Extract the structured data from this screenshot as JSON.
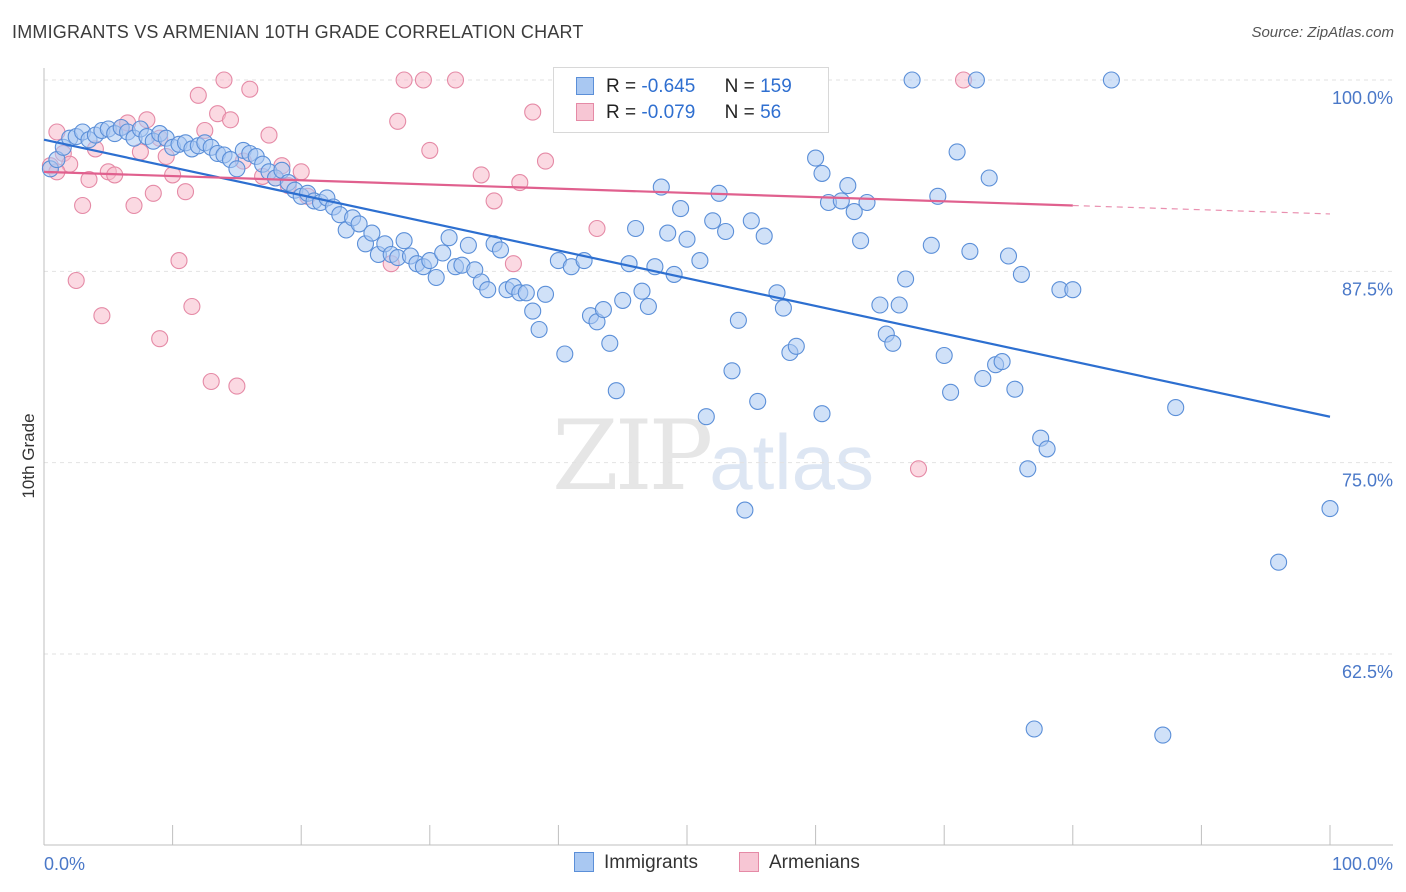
{
  "header": {
    "title": "IMMIGRANTS VS ARMENIAN 10TH GRADE CORRELATION CHART",
    "source": "Source: ZipAtlas.com"
  },
  "legend": {
    "rows": [
      {
        "r_label": "R =",
        "r_value": "-0.645",
        "n_label": "N =",
        "n_value": "159"
      },
      {
        "r_label": "R =",
        "r_value": "-0.079",
        "n_label": "N =",
        "n_value": "56"
      }
    ]
  },
  "bottom_legend": {
    "immigrants": "Immigrants",
    "armenians": "Armenians"
  },
  "watermark": {
    "zip": "ZIP",
    "atlas": "atlas"
  },
  "colors": {
    "blue_fill": "#a9c8f2",
    "blue_stroke": "#5b8fd8",
    "blue_line": "#2d6fd0",
    "pink_fill": "#f7b9cb",
    "pink_stroke": "#e58aa6",
    "pink_line": "#e0608e"
  },
  "chart_data": {
    "type": "scatter",
    "title": "IMMIGRANTS VS ARMENIAN 10TH GRADE CORRELATION CHART",
    "xlabel": "",
    "ylabel": "10th Grade",
    "xlim": [
      0,
      100
    ],
    "ylim": [
      48,
      101
    ],
    "x_tick_labels": [
      "0.0%",
      "100.0%"
    ],
    "y_ticks": [
      100.0,
      87.5,
      75.0,
      62.5
    ],
    "y_tick_labels": [
      "100.0%",
      "87.5%",
      "75.0%",
      "62.5%"
    ],
    "grid": true,
    "series": [
      {
        "name": "Immigrants",
        "color": "#5b8fd8",
        "trend": {
          "x0": 0,
          "y0": 96.1,
          "x1": 100,
          "y1": 78.0
        },
        "points": [
          [
            0.5,
            94.2
          ],
          [
            1,
            94.8
          ],
          [
            1.5,
            95.6
          ],
          [
            2,
            96.2
          ],
          [
            2.5,
            96.3
          ],
          [
            3,
            96.6
          ],
          [
            3.5,
            96.1
          ],
          [
            4,
            96.4
          ],
          [
            4.5,
            96.7
          ],
          [
            5,
            96.8
          ],
          [
            5.5,
            96.5
          ],
          [
            6,
            96.9
          ],
          [
            6.5,
            96.6
          ],
          [
            7,
            96.2
          ],
          [
            7.5,
            96.8
          ],
          [
            8,
            96.3
          ],
          [
            8.5,
            96.0
          ],
          [
            9,
            96.5
          ],
          [
            9.5,
            96.2
          ],
          [
            10,
            95.6
          ],
          [
            10.5,
            95.8
          ],
          [
            11,
            95.9
          ],
          [
            11.5,
            95.5
          ],
          [
            12,
            95.7
          ],
          [
            12.5,
            95.9
          ],
          [
            13,
            95.6
          ],
          [
            13.5,
            95.2
          ],
          [
            14,
            95.1
          ],
          [
            14.5,
            94.8
          ],
          [
            15,
            94.2
          ],
          [
            15.5,
            95.4
          ],
          [
            16,
            95.2
          ],
          [
            16.5,
            95.0
          ],
          [
            17,
            94.5
          ],
          [
            17.5,
            94.0
          ],
          [
            18,
            93.6
          ],
          [
            18.5,
            94.1
          ],
          [
            19,
            93.3
          ],
          [
            19.5,
            92.8
          ],
          [
            20,
            92.4
          ],
          [
            20.5,
            92.6
          ],
          [
            21,
            92.1
          ],
          [
            21.5,
            92.0
          ],
          [
            22,
            92.3
          ],
          [
            22.5,
            91.7
          ],
          [
            23,
            91.2
          ],
          [
            23.5,
            90.2
          ],
          [
            24,
            91.0
          ],
          [
            24.5,
            90.6
          ],
          [
            25,
            89.3
          ],
          [
            25.5,
            90.0
          ],
          [
            26,
            88.6
          ],
          [
            26.5,
            89.3
          ],
          [
            27,
            88.6
          ],
          [
            27.5,
            88.4
          ],
          [
            28,
            89.5
          ],
          [
            28.5,
            88.5
          ],
          [
            29,
            88.0
          ],
          [
            29.5,
            87.8
          ],
          [
            30,
            88.2
          ],
          [
            30.5,
            87.1
          ],
          [
            31,
            88.7
          ],
          [
            31.5,
            89.7
          ],
          [
            32,
            87.8
          ],
          [
            32.5,
            87.9
          ],
          [
            33,
            89.2
          ],
          [
            33.5,
            87.6
          ],
          [
            34,
            86.8
          ],
          [
            34.5,
            86.3
          ],
          [
            35,
            89.3
          ],
          [
            35.5,
            88.9
          ],
          [
            36,
            86.3
          ],
          [
            36.5,
            86.5
          ],
          [
            37,
            86.1
          ],
          [
            37.5,
            86.1
          ],
          [
            38,
            84.9
          ],
          [
            38.5,
            83.7
          ],
          [
            39,
            86.0
          ],
          [
            40,
            88.2
          ],
          [
            40.5,
            82.1
          ],
          [
            41,
            87.8
          ],
          [
            42,
            88.2
          ],
          [
            42.5,
            84.6
          ],
          [
            43,
            84.2
          ],
          [
            43.5,
            85.0
          ],
          [
            44,
            82.8
          ],
          [
            44.5,
            79.7
          ],
          [
            45,
            85.6
          ],
          [
            45.5,
            88.0
          ],
          [
            46,
            90.3
          ],
          [
            46.5,
            86.2
          ],
          [
            47,
            85.2
          ],
          [
            47.5,
            87.8
          ],
          [
            48,
            93.0
          ],
          [
            48.5,
            90.0
          ],
          [
            49,
            87.3
          ],
          [
            49.5,
            91.6
          ],
          [
            50,
            89.6
          ],
          [
            51,
            88.2
          ],
          [
            51.5,
            78.0
          ],
          [
            52,
            90.8
          ],
          [
            52.5,
            92.6
          ],
          [
            53,
            90.1
          ],
          [
            53.5,
            81.0
          ],
          [
            54,
            84.3
          ],
          [
            54.5,
            71.9
          ],
          [
            55,
            90.8
          ],
          [
            55.5,
            79.0
          ],
          [
            56,
            89.8
          ],
          [
            57,
            86.1
          ],
          [
            57.5,
            85.1
          ],
          [
            58,
            82.2
          ],
          [
            58.5,
            82.6
          ],
          [
            60,
            94.9
          ],
          [
            60.5,
            93.9
          ],
          [
            60.5,
            78.2
          ],
          [
            61,
            92.0
          ],
          [
            62,
            92.1
          ],
          [
            62.5,
            93.1
          ],
          [
            63,
            91.4
          ],
          [
            63.5,
            89.5
          ],
          [
            64,
            92.0
          ],
          [
            65,
            85.3
          ],
          [
            65.5,
            83.4
          ],
          [
            66,
            82.8
          ],
          [
            66.5,
            85.3
          ],
          [
            67,
            87.0
          ],
          [
            67.5,
            100
          ],
          [
            69,
            89.2
          ],
          [
            69.5,
            92.4
          ],
          [
            70,
            82.0
          ],
          [
            70.5,
            79.6
          ],
          [
            71,
            95.3
          ],
          [
            72,
            88.8
          ],
          [
            72.5,
            100
          ],
          [
            73,
            80.5
          ],
          [
            73.5,
            93.6
          ],
          [
            74,
            81.4
          ],
          [
            74.5,
            81.6
          ],
          [
            75,
            88.5
          ],
          [
            75.5,
            79.8
          ],
          [
            76,
            87.3
          ],
          [
            76.5,
            74.6
          ],
          [
            77,
            57.6
          ],
          [
            77.5,
            76.6
          ],
          [
            78,
            75.9
          ],
          [
            79,
            86.3
          ],
          [
            80,
            86.3
          ],
          [
            83,
            100
          ],
          [
            87,
            57.2
          ],
          [
            88,
            78.6
          ],
          [
            96,
            68.5
          ],
          [
            100,
            72.0
          ]
        ]
      },
      {
        "name": "Armenians",
        "color": "#e58aa6",
        "trend": {
          "x0": 0,
          "y0": 94.0,
          "x1": 80,
          "y1": 91.8
        },
        "points": [
          [
            0.5,
            94.4
          ],
          [
            1,
            96.6
          ],
          [
            1.5,
            95.2
          ],
          [
            2,
            94.5
          ],
          [
            2.5,
            86.9
          ],
          [
            3,
            91.8
          ],
          [
            3.5,
            93.5
          ],
          [
            4,
            95.5
          ],
          [
            4.5,
            84.6
          ],
          [
            5,
            94.0
          ],
          [
            5.5,
            93.8
          ],
          [
            6,
            96.9
          ],
          [
            6.5,
            97.2
          ],
          [
            7,
            91.8
          ],
          [
            7.5,
            95.3
          ],
          [
            8,
            97.4
          ],
          [
            8.5,
            92.6
          ],
          [
            9,
            96.2
          ],
          [
            9.5,
            95.0
          ],
          [
            10,
            93.8
          ],
          [
            10.5,
            88.2
          ],
          [
            11,
            92.7
          ],
          [
            11.5,
            85.2
          ],
          [
            12,
            99.0
          ],
          [
            12.5,
            96.7
          ],
          [
            13,
            80.3
          ],
          [
            13.5,
            97.8
          ],
          [
            14,
            100
          ],
          [
            14.5,
            97.4
          ],
          [
            15,
            80.0
          ],
          [
            15.5,
            94.7
          ],
          [
            16,
            99.4
          ],
          [
            17,
            93.7
          ],
          [
            17.5,
            96.4
          ],
          [
            18,
            93.6
          ],
          [
            18.5,
            94.4
          ],
          [
            19,
            93.1
          ],
          [
            20,
            94.0
          ],
          [
            20.5,
            92.4
          ],
          [
            27,
            88.0
          ],
          [
            27.5,
            97.3
          ],
          [
            28,
            100
          ],
          [
            29.5,
            100
          ],
          [
            30,
            95.4
          ],
          [
            32,
            100
          ],
          [
            34,
            93.8
          ],
          [
            35,
            92.1
          ],
          [
            36.5,
            88.0
          ],
          [
            37,
            93.3
          ],
          [
            38,
            97.9
          ],
          [
            39,
            94.7
          ],
          [
            43,
            90.3
          ],
          [
            68,
            74.6
          ],
          [
            71.5,
            100
          ],
          [
            9,
            83.1
          ],
          [
            1,
            94.0
          ]
        ]
      }
    ]
  }
}
